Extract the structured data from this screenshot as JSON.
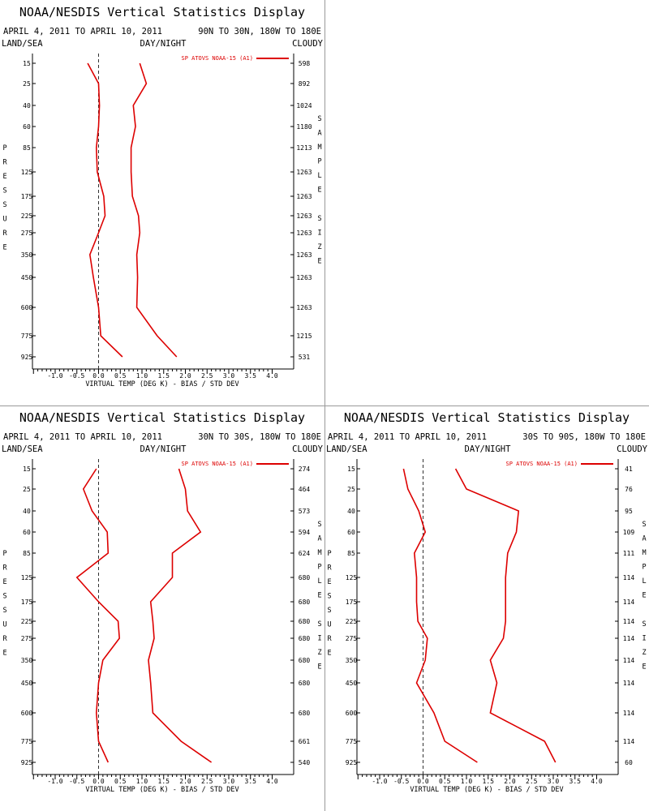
{
  "chart_data": [
    {
      "type": "line",
      "title": "NOAA/NESDIS Vertical Statistics Display",
      "date_range": "APRIL 4, 2011 TO APRIL 10, 2011",
      "region": "90N TO 30N, 180W TO 180E",
      "header_left": "LAND/SEA",
      "header_center": "DAY/NIGHT",
      "header_right": "CLOUDY",
      "ylabel": "PRESSURE",
      "y2label": "SAMPLE SIZE",
      "xlabel": "VIRTUAL TEMP (DEG K) - BIAS / STD DEV",
      "xlim": [
        -1.5,
        4.0
      ],
      "x_ticks": [
        "-1.0",
        "-0.5",
        "0.0",
        "0.5",
        "1.0",
        "1.5",
        "2.0",
        "2.5",
        "3.0",
        "3.5",
        "4.0"
      ],
      "pressure_levels": [
        "15",
        "25",
        "40",
        "60",
        "85",
        "125",
        "175",
        "225",
        "275",
        "350",
        "450",
        "600",
        "775",
        "925"
      ],
      "sample_sizes": [
        "598",
        "892",
        "1024",
        "1180",
        "1213",
        "1263",
        "1263",
        "1263",
        "1263",
        "1263",
        "1263",
        "1263",
        "1215",
        "531"
      ],
      "legend": "SP ATOVS NOAA-15 (A1)",
      "series": [
        {
          "role": "bias",
          "values": [
            -0.25,
            0.0,
            0.02,
            0.0,
            -0.05,
            -0.03,
            0.12,
            0.15,
            0.0,
            -0.2,
            -0.12,
            0.0,
            0.05,
            0.55
          ]
        },
        {
          "role": "std_dev",
          "values": [
            0.95,
            1.1,
            0.8,
            0.85,
            0.75,
            0.75,
            0.78,
            0.92,
            0.95,
            0.88,
            0.9,
            0.88,
            1.35,
            1.8
          ]
        }
      ]
    },
    {
      "type": "line",
      "title": "NOAA/NESDIS Vertical Statistics Display",
      "date_range": "APRIL 4, 2011 TO APRIL 10, 2011",
      "region": "30N TO 30S, 180W TO 180E",
      "header_left": "LAND/SEA",
      "header_center": "DAY/NIGHT",
      "header_right": "CLOUDY",
      "ylabel": "PRESSURE",
      "y2label": "SAMPLE SIZE",
      "xlabel": "VIRTUAL TEMP (DEG K) - BIAS / STD DEV",
      "xlim": [
        -1.5,
        4.0
      ],
      "x_ticks": [
        "-1.0",
        "-0.5",
        "0.0",
        "0.5",
        "1.0",
        "1.5",
        "2.0",
        "2.5",
        "3.0",
        "3.5",
        "4.0"
      ],
      "pressure_levels": [
        "15",
        "25",
        "40",
        "60",
        "85",
        "125",
        "175",
        "225",
        "275",
        "350",
        "450",
        "600",
        "775",
        "925"
      ],
      "sample_sizes": [
        "274",
        "464",
        "573",
        "594",
        "624",
        "680",
        "680",
        "680",
        "680",
        "680",
        "680",
        "680",
        "661",
        "540"
      ],
      "legend": "SP ATOVS NOAA-15 (A1)",
      "series": [
        {
          "role": "bias",
          "values": [
            -0.05,
            -0.35,
            -0.15,
            0.2,
            0.22,
            -0.5,
            0.0,
            0.45,
            0.48,
            0.1,
            0.0,
            -0.05,
            0.0,
            0.22
          ]
        },
        {
          "role": "std_dev",
          "values": [
            1.85,
            2.0,
            2.05,
            2.35,
            1.7,
            1.7,
            1.2,
            1.25,
            1.28,
            1.15,
            1.2,
            1.25,
            1.9,
            2.6
          ]
        }
      ]
    },
    {
      "type": "line",
      "title": "NOAA/NESDIS Vertical Statistics Display",
      "date_range": "APRIL 4, 2011 TO APRIL 10, 2011",
      "region": "30S TO 90S, 180W TO 180E",
      "header_left": "LAND/SEA",
      "header_center": "DAY/NIGHT",
      "header_right": "CLOUDY",
      "ylabel": "PRESSURE",
      "y2label": "SAMPLE SIZE",
      "xlabel": "VIRTUAL TEMP (DEG K) - BIAS / STD DEV",
      "xlim": [
        -1.5,
        4.0
      ],
      "x_ticks": [
        "-1.0",
        "-0.5",
        "0.0",
        "0.5",
        "1.0",
        "1.5",
        "2.0",
        "2.5",
        "3.0",
        "3.5",
        "4.0"
      ],
      "pressure_levels": [
        "15",
        "25",
        "40",
        "60",
        "85",
        "125",
        "175",
        "225",
        "275",
        "350",
        "450",
        "600",
        "775",
        "925"
      ],
      "sample_sizes": [
        "41",
        "76",
        "95",
        "109",
        "111",
        "114",
        "114",
        "114",
        "114",
        "114",
        "114",
        "114",
        "114",
        "60"
      ],
      "legend": "SP ATOVS NOAA-15 (A1)",
      "series": [
        {
          "role": "bias",
          "values": [
            -0.45,
            -0.35,
            -0.1,
            0.05,
            -0.2,
            -0.15,
            -0.15,
            -0.12,
            0.1,
            0.05,
            -0.15,
            0.25,
            0.5,
            1.25
          ]
        },
        {
          "role": "std_dev",
          "values": [
            0.75,
            1.0,
            2.2,
            2.15,
            1.95,
            1.9,
            1.9,
            1.9,
            1.85,
            1.55,
            1.7,
            1.55,
            2.8,
            3.05
          ]
        }
      ]
    }
  ],
  "colors": {
    "series": "#dd0000",
    "axis": "#000000",
    "zero_line": "#333333",
    "divider": "#999999"
  }
}
